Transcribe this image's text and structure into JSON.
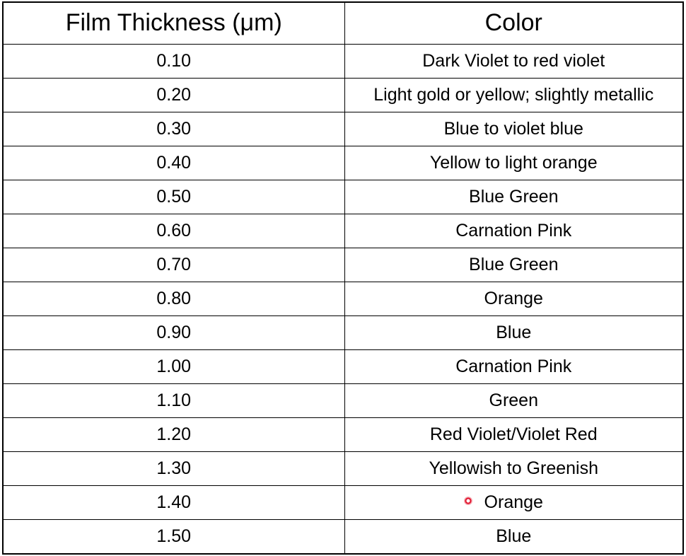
{
  "table": {
    "headers": {
      "thickness": "Film Thickness (μm)",
      "color": "Color"
    },
    "rows": [
      {
        "thickness": "0.10",
        "color": "Dark Violet to red violet"
      },
      {
        "thickness": "0.20",
        "color": "Light gold or yellow; slightly metallic"
      },
      {
        "thickness": "0.30",
        "color": "Blue to violet blue"
      },
      {
        "thickness": "0.40",
        "color": "Yellow to light orange"
      },
      {
        "thickness": "0.50",
        "color": "Blue Green"
      },
      {
        "thickness": "0.60",
        "color": "Carnation Pink"
      },
      {
        "thickness": "0.70",
        "color": "Blue Green"
      },
      {
        "thickness": "0.80",
        "color": "Orange"
      },
      {
        "thickness": "0.90",
        "color": "Blue"
      },
      {
        "thickness": "1.00",
        "color": "Carnation Pink"
      },
      {
        "thickness": "1.10",
        "color": "Green"
      },
      {
        "thickness": "1.20",
        "color": "Red Violet/Violet Red"
      },
      {
        "thickness": "1.30",
        "color": "Yellowish to Greenish"
      },
      {
        "thickness": "1.40",
        "color": "Orange"
      },
      {
        "thickness": "1.50",
        "color": "Blue"
      }
    ]
  },
  "cursor": {
    "icon": "cursor-dot-icon",
    "color": "#e0102a"
  }
}
